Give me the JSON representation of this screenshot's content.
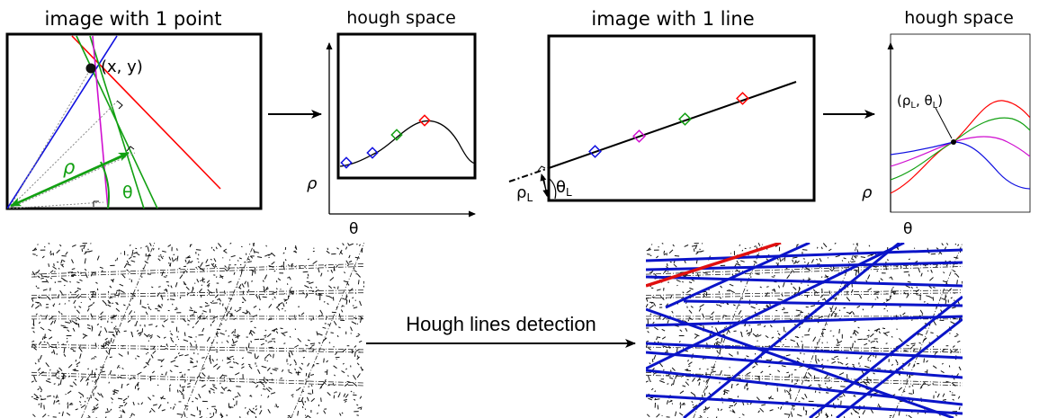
{
  "panels": {
    "point_image": {
      "title": "image with 1 point",
      "point_label": "(x, y)",
      "rho": "ρ",
      "theta": "θ"
    },
    "hough_space_1": {
      "title": "hough space",
      "rho_axis": "ρ",
      "theta_axis": "θ"
    },
    "line_image": {
      "title": "image with 1 line",
      "rho_l": "ρ",
      "rho_l_sub": "L",
      "theta_l": "θ",
      "theta_l_sub": "L"
    },
    "hough_space_2": {
      "title": "hough space",
      "rho_axis": "ρ",
      "theta_axis": "θ",
      "intersection_label": "(ρ",
      "intersection_sub1": "L",
      "intersection_mid": ", θ",
      "intersection_sub2": "L",
      "intersection_end": ")"
    }
  },
  "bottom": {
    "caption": "Hough lines detection"
  },
  "colors": {
    "red": "#ff0000",
    "green": "#12a012",
    "blue": "#1010e0",
    "magenta": "#d010d0",
    "gray": "#888888",
    "detected_blue": "#0a14c8",
    "detected_red": "#e01010"
  }
}
